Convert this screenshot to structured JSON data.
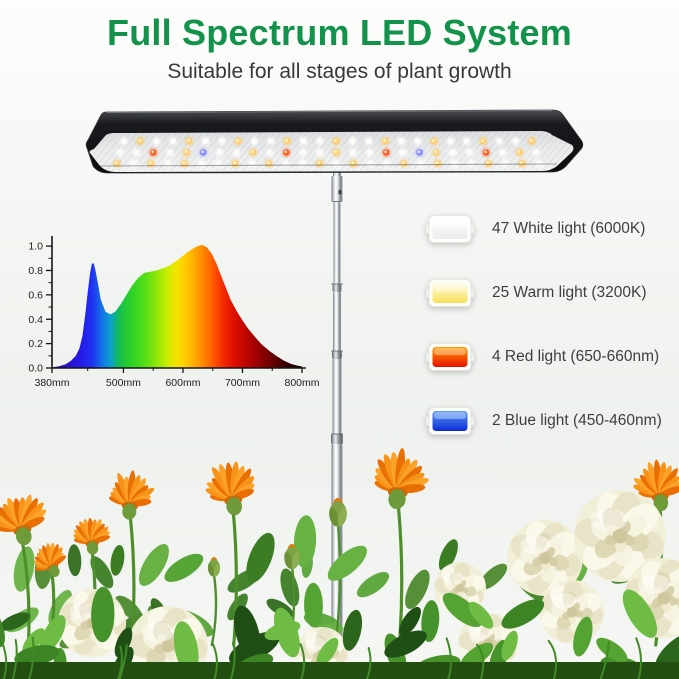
{
  "page": {
    "title": "Full Spectrum LED System",
    "title_color": "#12924a",
    "subtitle": "Suitable for all stages of plant growth",
    "subtitle_color": "#383838",
    "background": "#f3f5f2"
  },
  "product": {
    "name": "LED grow light panel on telescopic pole",
    "led_rows": [
      "WAWWAWWAWWAWWAWWAWWAWWAWWA",
      "WWRWABWWAWRWWAWWRWBAWWRWAW",
      "AWAWAWWAWAWWAWAWWAWAWWAWAW"
    ],
    "led_colors": {
      "W": "#fbfaf3",
      "A": "#ffcf6e",
      "R": "#ff5a1a",
      "B": "#8289ff"
    },
    "led_glow": {
      "W": "#ffffff",
      "A": "#ffc95e",
      "R": "#ff6a2a",
      "B": "#98a0ff"
    }
  },
  "legend": {
    "items": [
      {
        "label": "47 White light (6000K)",
        "type": "white",
        "swatch_top": "#ffffff",
        "swatch_bottom": "#e9eaea"
      },
      {
        "label": "25 Warm light (3200K)",
        "type": "warm",
        "swatch_top": "#fffce4",
        "swatch_bottom": "#f8e05a"
      },
      {
        "label": "4 Red light (650-660nm)",
        "type": "red",
        "swatch_top": "#ff9d00",
        "swatch_bottom": "#e81000"
      },
      {
        "label": "2 Blue light (450-460nm)",
        "type": "blue",
        "swatch_top": "#5b9bf5",
        "swatch_bottom": "#0d2bd6"
      }
    ]
  },
  "chart_data": {
    "type": "area",
    "title": "",
    "xlabel": "",
    "ylabel": "",
    "xlim": [
      380,
      800
    ],
    "ylim": [
      0,
      1.05
    ],
    "x_ticks": [
      {
        "value": 380,
        "label": "380mm"
      },
      {
        "value": 500,
        "label": "500mm"
      },
      {
        "value": 600,
        "label": "600mm"
      },
      {
        "value": 700,
        "label": "700mm"
      },
      {
        "value": 800,
        "label": "800mm"
      }
    ],
    "x_minor_ticks": [
      440,
      550,
      650,
      750
    ],
    "y_ticks": [
      "0.0",
      "0.2",
      "0.4",
      "0.6",
      "0.8",
      "1.0"
    ],
    "y_minor_step": 0.1,
    "grid": false,
    "legend_position": "none",
    "points": [
      [
        380,
        0.005
      ],
      [
        392,
        0.015
      ],
      [
        403,
        0.03
      ],
      [
        412,
        0.06
      ],
      [
        420,
        0.1
      ],
      [
        426,
        0.16
      ],
      [
        431,
        0.26
      ],
      [
        436,
        0.44
      ],
      [
        440,
        0.62
      ],
      [
        444,
        0.78
      ],
      [
        447,
        0.855
      ],
      [
        450,
        0.86
      ],
      [
        453,
        0.8
      ],
      [
        457,
        0.7
      ],
      [
        462,
        0.56
      ],
      [
        470,
        0.46
      ],
      [
        478,
        0.44
      ],
      [
        486,
        0.46
      ],
      [
        495,
        0.52
      ],
      [
        505,
        0.6
      ],
      [
        515,
        0.68
      ],
      [
        525,
        0.74
      ],
      [
        535,
        0.78
      ],
      [
        545,
        0.79
      ],
      [
        555,
        0.8
      ],
      [
        565,
        0.815
      ],
      [
        575,
        0.835
      ],
      [
        585,
        0.865
      ],
      [
        595,
        0.9
      ],
      [
        605,
        0.94
      ],
      [
        615,
        0.975
      ],
      [
        625,
        1.0
      ],
      [
        632,
        1.01
      ],
      [
        640,
        0.99
      ],
      [
        648,
        0.94
      ],
      [
        656,
        0.86
      ],
      [
        664,
        0.76
      ],
      [
        672,
        0.66
      ],
      [
        680,
        0.56
      ],
      [
        690,
        0.47
      ],
      [
        700,
        0.39
      ],
      [
        710,
        0.32
      ],
      [
        720,
        0.26
      ],
      [
        732,
        0.195
      ],
      [
        745,
        0.14
      ],
      [
        758,
        0.095
      ],
      [
        770,
        0.06
      ],
      [
        782,
        0.033
      ],
      [
        792,
        0.02
      ],
      [
        800,
        0.012
      ]
    ],
    "gradient": [
      {
        "nm": 380,
        "color": "#2a0ca8"
      },
      {
        "nm": 425,
        "color": "#2417e2"
      },
      {
        "nm": 447,
        "color": "#2130f2"
      },
      {
        "nm": 465,
        "color": "#1277e8"
      },
      {
        "nm": 480,
        "color": "#0aa5c8"
      },
      {
        "nm": 490,
        "color": "#12b865"
      },
      {
        "nm": 500,
        "color": "#1fc53c"
      },
      {
        "nm": 515,
        "color": "#2fd326"
      },
      {
        "nm": 535,
        "color": "#52dd17"
      },
      {
        "nm": 555,
        "color": "#8ce60a"
      },
      {
        "nm": 572,
        "color": "#c3ee00"
      },
      {
        "nm": 588,
        "color": "#f4e400"
      },
      {
        "nm": 600,
        "color": "#ffd300"
      },
      {
        "nm": 615,
        "color": "#ffb400"
      },
      {
        "nm": 630,
        "color": "#ff9100"
      },
      {
        "nm": 645,
        "color": "#ff6a00"
      },
      {
        "nm": 658,
        "color": "#fc4300"
      },
      {
        "nm": 670,
        "color": "#f12600"
      },
      {
        "nm": 685,
        "color": "#e01000"
      },
      {
        "nm": 700,
        "color": "#c80700"
      },
      {
        "nm": 718,
        "color": "#a80200"
      },
      {
        "nm": 740,
        "color": "#7e0000"
      },
      {
        "nm": 760,
        "color": "#520000"
      },
      {
        "nm": 780,
        "color": "#2b0000"
      },
      {
        "nm": 800,
        "color": "#0d0000"
      }
    ]
  },
  "palette": {
    "flower_orange": "#f5871a",
    "flower_cream": "#f4f1da",
    "foliage_green": "#3f8a24",
    "chrome_gray": "#c7ccd1",
    "panel_black": "#121316"
  }
}
